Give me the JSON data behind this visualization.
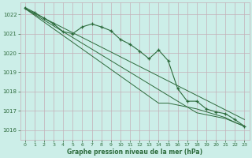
{
  "background_color": "#cceee8",
  "grid_color": "#c4b0b8",
  "line_color": "#2d6b3c",
  "xlabel": "Graphe pression niveau de la mer (hPa)",
  "ylim": [
    1015.5,
    1022.6
  ],
  "xlim": [
    -0.5,
    23.5
  ],
  "yticks": [
    1016,
    1017,
    1018,
    1019,
    1020,
    1021,
    1022
  ],
  "xticks": [
    0,
    1,
    2,
    3,
    4,
    5,
    6,
    7,
    8,
    9,
    10,
    11,
    12,
    13,
    14,
    15,
    16,
    17,
    18,
    19,
    20,
    21,
    22,
    23
  ],
  "smooth_line1": [
    1022.3,
    1022.05,
    1021.8,
    1021.55,
    1021.3,
    1021.05,
    1020.8,
    1020.55,
    1020.3,
    1020.05,
    1019.8,
    1019.55,
    1019.3,
    1019.05,
    1018.8,
    1018.55,
    1018.3,
    1018.05,
    1017.8,
    1017.55,
    1017.3,
    1017.05,
    1016.8,
    1016.55
  ],
  "smooth_line2": [
    1022.3,
    1022.0,
    1021.7,
    1021.4,
    1021.1,
    1020.8,
    1020.5,
    1020.2,
    1019.9,
    1019.6,
    1019.3,
    1019.0,
    1018.7,
    1018.4,
    1018.1,
    1017.8,
    1017.5,
    1017.2,
    1016.9,
    1016.8,
    1016.7,
    1016.6,
    1016.4,
    1016.2
  ],
  "smooth_line3": [
    1022.3,
    1021.95,
    1021.6,
    1021.25,
    1020.9,
    1020.55,
    1020.2,
    1019.85,
    1019.5,
    1019.15,
    1018.8,
    1018.45,
    1018.1,
    1017.75,
    1017.4,
    1017.4,
    1017.3,
    1017.2,
    1017.1,
    1016.95,
    1016.8,
    1016.65,
    1016.4,
    1016.2
  ],
  "marker_line": [
    1022.35,
    1022.1,
    1021.8,
    1021.5,
    1021.1,
    1021.0,
    1021.35,
    1021.5,
    1021.35,
    1021.15,
    1020.7,
    1020.45,
    1020.1,
    1019.7,
    1020.15,
    1019.6,
    1018.15,
    1017.5,
    1017.5,
    1017.1,
    1016.95,
    1016.85,
    1016.55,
    1016.2
  ]
}
